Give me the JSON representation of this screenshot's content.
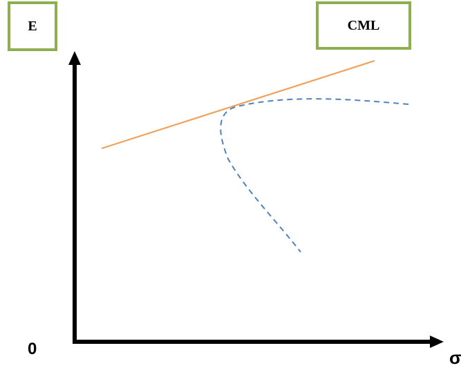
{
  "labels": {
    "y_axis": "E",
    "line": "CML",
    "origin": "0",
    "x_axis": "σ"
  },
  "colors": {
    "cml_line": "#f0a05a",
    "frontier": "#4f81bd",
    "box_border": "#8db04e",
    "axes": "#000000"
  }
}
